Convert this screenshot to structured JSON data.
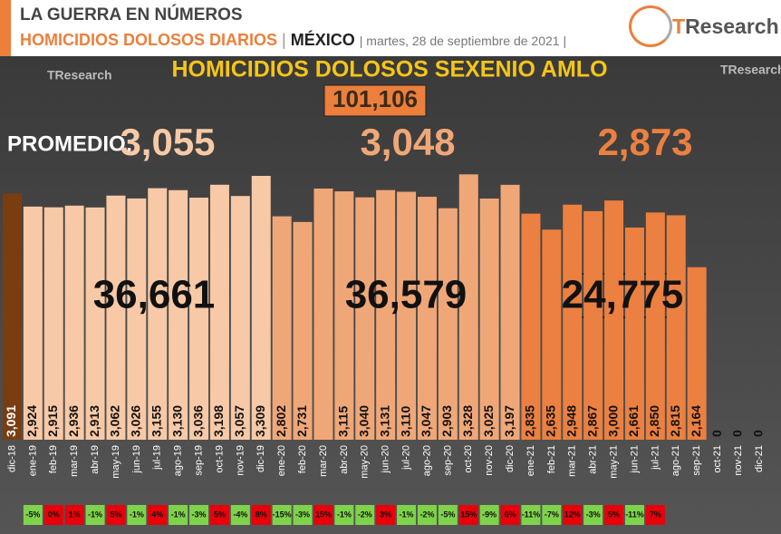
{
  "header": {
    "kicker": "LA GUERRA EN NÚMEROS",
    "topic": "HOMICIDIOS DOLOSOS DIARIOS",
    "separator": "|",
    "place": "MÉXICO",
    "date": "| martes, 28 de septiembre de 2021 |",
    "logo": "TResearch"
  },
  "chart_data": {
    "type": "bar",
    "title": "HOMICIDIOS DOLOSOS SEXENIO AMLO",
    "total": "101,106",
    "average_label": "PROMEDIO:",
    "averages": [
      "3,055",
      "3,048",
      "2,873"
    ],
    "year_totals": [
      "36,661",
      "36,579",
      "24,775"
    ],
    "categories": [
      "dic-18",
      "ene-19",
      "feb-19",
      "mar-19",
      "abr-19",
      "may-19",
      "jun-19",
      "jul-19",
      "ago-19",
      "sep-19",
      "oct-19",
      "nov-19",
      "dic-19",
      "ene-20",
      "feb-20",
      "mar-20",
      "abr-20",
      "may-20",
      "jun-20",
      "jul-20",
      "ago-20",
      "sep-20",
      "oct-20",
      "nov-20",
      "dic-20",
      "ene-21",
      "feb-21",
      "mar-21",
      "abr-21",
      "may-21",
      "jun-21",
      "jul-21",
      "ago-21",
      "sep-21",
      "oct-21",
      "nov-21",
      "dic-21"
    ],
    "values": [
      3091,
      2924,
      2915,
      2936,
      2913,
      3062,
      3026,
      3155,
      3130,
      3036,
      3198,
      3057,
      3309,
      2802,
      2731,
      3150,
      3115,
      3040,
      3131,
      3110,
      3047,
      2903,
      3328,
      3025,
      3197,
      2835,
      2635,
      2948,
      2867,
      3000,
      2661,
      2850,
      2815,
      2164,
      0,
      0,
      0
    ],
    "value_labels": [
      "3,091",
      "2,924",
      "2,915",
      "2,936",
      "2,913",
      "3,062",
      "3,026",
      "3,155",
      "3,130",
      "3,036",
      "3,198",
      "3,057",
      "3,309",
      "2,802",
      "2,731",
      null,
      "3,115",
      "3,040",
      "3,131",
      "3,110",
      "3,047",
      "2,903",
      "3,328",
      "3,025",
      "3,197",
      "2,835",
      "2,635",
      "2,948",
      "2,867",
      "3,000",
      "2,661",
      "2,850",
      "2,815",
      "2,164",
      "0",
      "0",
      "0"
    ],
    "colors": [
      "#7a3d12",
      "#f7c9a6",
      "#f7c9a6",
      "#f7c9a6",
      "#f7c9a6",
      "#f7c9a6",
      "#f7c9a6",
      "#f7c9a6",
      "#f7c9a6",
      "#f7c9a6",
      "#f7c9a6",
      "#f7c9a6",
      "#f7c9a6",
      "#f0a778",
      "#f0a778",
      "#f0a778",
      "#f0a778",
      "#f0a778",
      "#f0a778",
      "#f0a778",
      "#f0a778",
      "#f0a778",
      "#f0a778",
      "#f0a778",
      "#f0a778",
      "#ec8040",
      "#ec8040",
      "#ec8040",
      "#ec8040",
      "#ec8040",
      "#ec8040",
      "#ec8040",
      "#ec8040",
      "#ec8040",
      "#ec8040",
      "#ec8040",
      "#ec8040"
    ],
    "ylim": [
      0,
      3400
    ],
    "changes": [
      null,
      {
        "value": -5,
        "label": "-5%"
      },
      {
        "value": 0,
        "label": "0%"
      },
      {
        "value": 1,
        "label": "1%"
      },
      {
        "value": -1,
        "label": "-1%"
      },
      {
        "value": 5,
        "label": "5%"
      },
      {
        "value": -1,
        "label": "-1%"
      },
      {
        "value": 4,
        "label": "4%"
      },
      {
        "value": -1,
        "label": "-1%"
      },
      {
        "value": -3,
        "label": "-3%"
      },
      {
        "value": 5,
        "label": "5%"
      },
      {
        "value": -4,
        "label": "-4%"
      },
      {
        "value": 8,
        "label": "8%"
      },
      {
        "value": -15,
        "label": "-15%"
      },
      {
        "value": -3,
        "label": "-3%"
      },
      {
        "value": 15,
        "label": "15%"
      },
      {
        "value": -1,
        "label": "-1%"
      },
      {
        "value": -2,
        "label": "-2%"
      },
      {
        "value": 3,
        "label": "3%"
      },
      {
        "value": -1,
        "label": "-1%"
      },
      {
        "value": -2,
        "label": "-2%"
      },
      {
        "value": -5,
        "label": "-5%"
      },
      {
        "value": 15,
        "label": "15%"
      },
      {
        "value": -9,
        "label": "-9%"
      },
      {
        "value": 6,
        "label": "6%"
      },
      {
        "value": -11,
        "label": "-11%"
      },
      {
        "value": -7,
        "label": "-7%"
      },
      {
        "value": 12,
        "label": "12%"
      },
      {
        "value": -3,
        "label": "-3%"
      },
      {
        "value": 5,
        "label": "5%"
      },
      {
        "value": -11,
        "label": "-11%"
      },
      {
        "value": 7,
        "label": "7%"
      },
      null,
      null,
      null,
      null,
      null
    ],
    "up_color": "#e8000b",
    "down_color": "#7ed34a"
  }
}
